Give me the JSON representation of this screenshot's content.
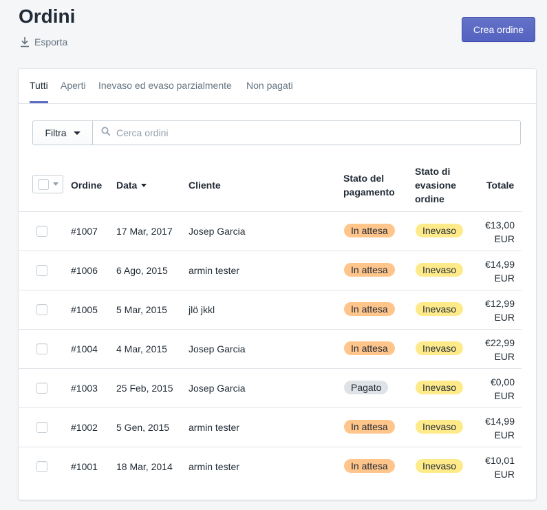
{
  "page": {
    "title": "Ordini",
    "export_label": "Esporta",
    "create_label": "Crea ordine"
  },
  "tabs": [
    {
      "label": "Tutti",
      "active": true
    },
    {
      "label": "Aperti",
      "active": false
    },
    {
      "label": "Inevaso ed evaso parzialmente",
      "active": false
    },
    {
      "label": "Non pagati",
      "active": false
    }
  ],
  "filter": {
    "button_label": "Filtra",
    "search_placeholder": "Cerca ordini",
    "search_value": ""
  },
  "table": {
    "columns": {
      "order": "Ordine",
      "date": "Data",
      "customer": "Cliente",
      "payment_l1": "Stato del",
      "payment_l2": "pagamento",
      "fulfil_l1": "Stato di",
      "fulfil_l2": "evasione",
      "fulfil_l3": "ordine",
      "total": "Totale"
    },
    "rows": [
      {
        "order": "#1007",
        "date": "17 Mar, 2017",
        "customer": "Josep Garcia",
        "payment": "In attesa",
        "fulfillment": "Inevaso",
        "total_amount": "€13,00",
        "currency": "EUR"
      },
      {
        "order": "#1006",
        "date": "6 Ago, 2015",
        "customer": "armin tester",
        "payment": "In attesa",
        "fulfillment": "Inevaso",
        "total_amount": "€14,99",
        "currency": "EUR"
      },
      {
        "order": "#1005",
        "date": "5 Mar, 2015",
        "customer": "jlö jkkl",
        "payment": "In attesa",
        "fulfillment": "Inevaso",
        "total_amount": "€12,99",
        "currency": "EUR"
      },
      {
        "order": "#1004",
        "date": "4 Mar, 2015",
        "customer": "Josep Garcia",
        "payment": "In attesa",
        "fulfillment": "Inevaso",
        "total_amount": "€22,99",
        "currency": "EUR"
      },
      {
        "order": "#1003",
        "date": "25 Feb, 2015",
        "customer": "Josep Garcia",
        "payment": "Pagato",
        "fulfillment": "Inevaso",
        "total_amount": "€0,00",
        "currency": "EUR"
      },
      {
        "order": "#1002",
        "date": "5 Gen, 2015",
        "customer": "armin tester",
        "payment": "In attesa",
        "fulfillment": "Inevaso",
        "total_amount": "€14,99",
        "currency": "EUR"
      },
      {
        "order": "#1001",
        "date": "18 Mar, 2014",
        "customer": "armin tester",
        "payment": "In attesa",
        "fulfillment": "Inevaso",
        "total_amount": "€10,01",
        "currency": "EUR"
      }
    ]
  },
  "colors": {
    "pending_badge": "#ffc58b",
    "paid_badge": "#dfe3e8",
    "unfulfilled_badge": "#ffea8a",
    "link": "#007ace",
    "primary": "#5c6ac4"
  },
  "icons": {
    "export": "download-icon",
    "search": "search-icon",
    "filter_caret": "caret-down-icon",
    "sort": "sort-desc-icon"
  }
}
